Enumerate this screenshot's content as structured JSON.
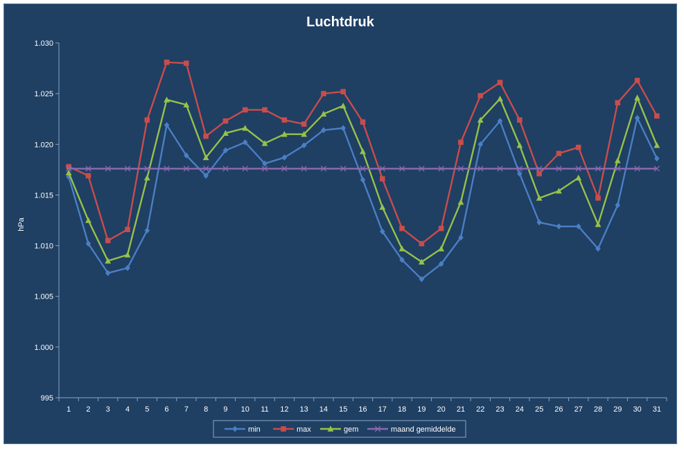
{
  "chart_data": {
    "type": "line",
    "title": "Luchtdruk",
    "ylabel": "hPa",
    "xlabel": "",
    "ylim": [
      995,
      1030
    ],
    "yticks": [
      995,
      1000,
      1005,
      1010,
      1015,
      1020,
      1025,
      1030
    ],
    "ytick_labels": [
      "995",
      "1.000",
      "1.005",
      "1.010",
      "1.015",
      "1.020",
      "1.025",
      "1.030"
    ],
    "categories": [
      "1",
      "2",
      "3",
      "4",
      "5",
      "6",
      "7",
      "8",
      "9",
      "10",
      "11",
      "12",
      "13",
      "14",
      "15",
      "16",
      "17",
      "18",
      "19",
      "20",
      "21",
      "22",
      "23",
      "24",
      "25",
      "26",
      "27",
      "28",
      "29",
      "30",
      "31"
    ],
    "grid": false,
    "legend_position": "bottom",
    "series": [
      {
        "name": "min",
        "color": "#4a7fc4",
        "marker": "diamond",
        "values": [
          1016.8,
          1010.2,
          1007.3,
          1007.8,
          1011.5,
          1021.9,
          1018.9,
          1016.9,
          1019.4,
          1020.2,
          1018.1,
          1018.7,
          1019.9,
          1021.4,
          1021.6,
          1016.5,
          1011.4,
          1008.6,
          1006.7,
          1008.2,
          1010.8,
          1020.0,
          1022.3,
          1017.1,
          1012.3,
          1011.9,
          1011.9,
          1009.7,
          1014.0,
          1022.6,
          1018.6
        ]
      },
      {
        "name": "max",
        "color": "#c84d4b",
        "marker": "square",
        "values": [
          1017.8,
          1016.9,
          1010.5,
          1011.6,
          1022.4,
          1028.1,
          1028.0,
          1020.8,
          1022.3,
          1023.4,
          1023.4,
          1022.4,
          1022.0,
          1025.0,
          1025.2,
          1022.2,
          1016.6,
          1011.7,
          1010.2,
          1011.7,
          1020.2,
          1024.8,
          1026.1,
          1022.4,
          1017.1,
          1019.1,
          1019.7,
          1014.7,
          1024.1,
          1026.3,
          1022.8
        ]
      },
      {
        "name": "gem",
        "color": "#96c24a",
        "marker": "triangle",
        "values": [
          1017.2,
          1012.5,
          1008.5,
          1009.1,
          1016.7,
          1024.4,
          1023.9,
          1018.7,
          1021.1,
          1021.6,
          1020.1,
          1021.0,
          1021.0,
          1023.0,
          1023.8,
          1019.3,
          1013.8,
          1009.7,
          1008.4,
          1009.7,
          1014.3,
          1022.4,
          1024.5,
          1019.9,
          1014.7,
          1015.4,
          1016.7,
          1012.1,
          1018.4,
          1024.6,
          1019.9
        ]
      },
      {
        "name": "maand gemiddelde",
        "color": "#8d6bb1",
        "marker": "x",
        "values": [
          1017.6,
          1017.6,
          1017.6,
          1017.6,
          1017.6,
          1017.6,
          1017.6,
          1017.6,
          1017.6,
          1017.6,
          1017.6,
          1017.6,
          1017.6,
          1017.6,
          1017.6,
          1017.6,
          1017.6,
          1017.6,
          1017.6,
          1017.6,
          1017.6,
          1017.6,
          1017.6,
          1017.6,
          1017.6,
          1017.6,
          1017.6,
          1017.6,
          1017.6,
          1017.6,
          1017.6
        ]
      }
    ]
  }
}
